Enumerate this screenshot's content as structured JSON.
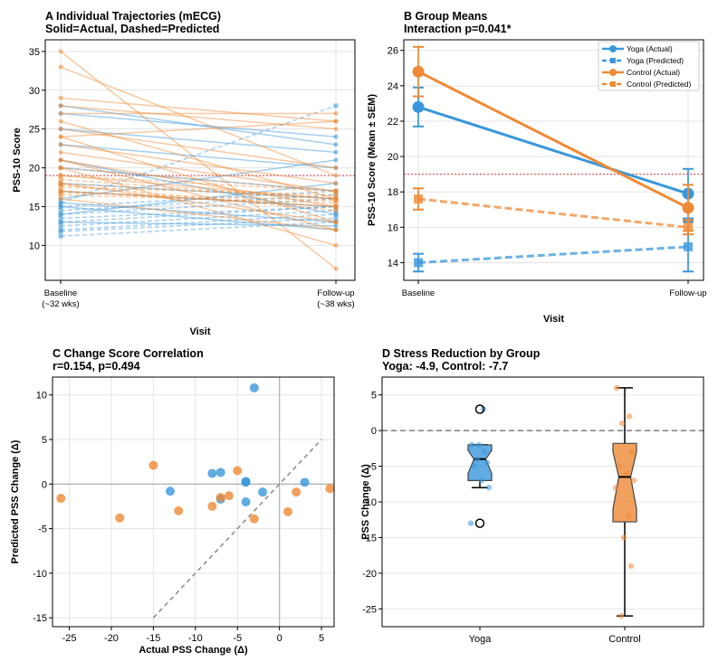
{
  "colors": {
    "yoga": "#3a97db",
    "control": "#ee8a35",
    "threshold": "#e8595a",
    "grid": "#e3e3e3",
    "ref": "#888888"
  },
  "chart_data": [
    {
      "panel": "A",
      "type": "line",
      "title": "A  Individual Trajectories (mECG)",
      "subtitle": "Solid=Actual, Dashed=Predicted",
      "xlabel": "Visit",
      "ylabel": "PSS-10 Score",
      "categories": [
        "Baseline\n(~32 wks)",
        "Follow-up\n(~38 wks)"
      ],
      "ylim": [
        5.5,
        36.5
      ],
      "yticks": [
        10,
        15,
        20,
        25,
        30,
        35
      ],
      "threshold": 19,
      "series": [
        {
          "group": "yoga",
          "kind": "actual",
          "values": [
            28,
            23
          ]
        },
        {
          "group": "yoga",
          "kind": "actual",
          "values": [
            27,
            24
          ]
        },
        {
          "group": "yoga",
          "kind": "actual",
          "values": [
            25,
            22
          ]
        },
        {
          "group": "yoga",
          "kind": "actual",
          "values": [
            23,
            20
          ]
        },
        {
          "group": "yoga",
          "kind": "actual",
          "values": [
            21,
            14
          ]
        },
        {
          "group": "yoga",
          "kind": "actual",
          "values": [
            20,
            17
          ]
        },
        {
          "group": "yoga",
          "kind": "actual",
          "values": [
            18,
            16
          ]
        },
        {
          "group": "yoga",
          "kind": "actual",
          "values": [
            17,
            15
          ]
        },
        {
          "group": "yoga",
          "kind": "actual",
          "values": [
            16,
            21
          ]
        },
        {
          "group": "yoga",
          "kind": "actual",
          "values": [
            15.5,
            13
          ]
        },
        {
          "group": "yoga",
          "kind": "actual",
          "values": [
            15,
            12
          ]
        },
        {
          "group": "yoga",
          "kind": "actual",
          "values": [
            14,
            18
          ]
        },
        {
          "group": "yoga",
          "kind": "actual",
          "values": [
            13,
            12.5
          ]
        },
        {
          "group": "yoga",
          "kind": "predicted",
          "values": [
            15.5,
            28
          ]
        },
        {
          "group": "yoga",
          "kind": "predicted",
          "values": [
            14,
            16
          ]
        },
        {
          "group": "yoga",
          "kind": "predicted",
          "values": [
            13,
            15
          ]
        },
        {
          "group": "yoga",
          "kind": "predicted",
          "values": [
            12.5,
            14.5
          ]
        },
        {
          "group": "yoga",
          "kind": "predicted",
          "values": [
            12,
            14
          ]
        },
        {
          "group": "yoga",
          "kind": "predicted",
          "values": [
            11.8,
            13.5
          ]
        },
        {
          "group": "yoga",
          "kind": "predicted",
          "values": [
            11.2,
            13
          ]
        },
        {
          "group": "yoga",
          "kind": "predicted",
          "values": [
            13.5,
            15
          ]
        },
        {
          "group": "yoga",
          "kind": "predicted",
          "values": [
            14.5,
            16.5
          ]
        },
        {
          "group": "yoga",
          "kind": "predicted",
          "values": [
            15,
            17
          ]
        },
        {
          "group": "control",
          "kind": "actual",
          "values": [
            35,
            7
          ]
        },
        {
          "group": "control",
          "kind": "actual",
          "values": [
            33,
            19
          ]
        },
        {
          "group": "control",
          "kind": "actual",
          "values": [
            29,
            26
          ]
        },
        {
          "group": "control",
          "kind": "actual",
          "values": [
            28,
            25
          ]
        },
        {
          "group": "control",
          "kind": "actual",
          "values": [
            27,
            27
          ]
        },
        {
          "group": "control",
          "kind": "actual",
          "values": [
            26,
            16
          ]
        },
        {
          "group": "control",
          "kind": "actual",
          "values": [
            25,
            20
          ]
        },
        {
          "group": "control",
          "kind": "actual",
          "values": [
            24,
            26
          ]
        },
        {
          "group": "control",
          "kind": "actual",
          "values": [
            23,
            18
          ]
        },
        {
          "group": "control",
          "kind": "actual",
          "values": [
            22,
            17
          ]
        },
        {
          "group": "control",
          "kind": "actual",
          "values": [
            21,
            15
          ]
        },
        {
          "group": "control",
          "kind": "actual",
          "values": [
            20,
            10
          ]
        },
        {
          "group": "control",
          "kind": "actual",
          "values": [
            19,
            16
          ]
        },
        {
          "group": "control",
          "kind": "actual",
          "values": [
            18,
            13
          ]
        },
        {
          "group": "control",
          "kind": "actual",
          "values": [
            17,
            15
          ]
        },
        {
          "group": "control",
          "kind": "actual",
          "values": [
            16,
            12
          ]
        },
        {
          "group": "control",
          "kind": "actual",
          "values": [
            24,
            13
          ]
        },
        {
          "group": "control",
          "kind": "actual",
          "values": [
            21,
            12
          ]
        },
        {
          "group": "control",
          "kind": "predicted",
          "values": [
            18,
            16
          ]
        },
        {
          "group": "control",
          "kind": "predicted",
          "values": [
            17.5,
            16.5
          ]
        },
        {
          "group": "control",
          "kind": "predicted",
          "values": [
            17,
            15
          ]
        },
        {
          "group": "control",
          "kind": "predicted",
          "values": [
            19,
            17
          ]
        },
        {
          "group": "control",
          "kind": "predicted",
          "values": [
            18.5,
            16
          ]
        },
        {
          "group": "control",
          "kind": "predicted",
          "values": [
            16.5,
            15.5
          ]
        },
        {
          "group": "control",
          "kind": "predicted",
          "values": [
            20,
            17
          ]
        },
        {
          "group": "control",
          "kind": "predicted",
          "values": [
            17.8,
            14.5
          ]
        },
        {
          "group": "control",
          "kind": "predicted",
          "values": [
            16.8,
            15.8
          ]
        }
      ]
    },
    {
      "panel": "B",
      "type": "line",
      "title": "B  Group Means",
      "subtitle": "Interaction p=0.041*",
      "xlabel": "Visit",
      "ylabel": "PSS-10 Score (Mean ± SEM)",
      "categories": [
        "Baseline",
        "Follow-up"
      ],
      "ylim": [
        13,
        26.6
      ],
      "yticks": [
        14,
        16,
        18,
        20,
        22,
        24,
        26
      ],
      "threshold": 19,
      "series": [
        {
          "name": "Yoga (Actual)",
          "group": "yoga",
          "kind": "actual",
          "values": [
            22.8,
            17.9
          ],
          "sem": [
            1.1,
            1.4
          ]
        },
        {
          "name": "Yoga (Predicted)",
          "group": "yoga",
          "kind": "predicted",
          "values": [
            14.0,
            14.9
          ],
          "sem": [
            0.5,
            1.4
          ]
        },
        {
          "name": "Control (Actual)",
          "group": "control",
          "kind": "actual",
          "values": [
            24.8,
            17.1
          ],
          "sem": [
            1.4,
            1.3
          ]
        },
        {
          "name": "Control (Predicted)",
          "group": "control",
          "kind": "predicted",
          "values": [
            17.6,
            16.0
          ],
          "sem": [
            0.6,
            0.4
          ]
        }
      ]
    },
    {
      "panel": "C",
      "type": "scatter",
      "title": "C  Change Score Correlation",
      "subtitle": "r=0.154, p=0.494",
      "xlabel": "Actual PSS Change (Δ)",
      "ylabel": "Predicted PSS Change (Δ)",
      "xlim": [
        -27,
        6.5
      ],
      "ylim": [
        -16,
        12
      ],
      "xticks": [
        -25,
        -20,
        -15,
        -10,
        -5,
        0,
        5
      ],
      "yticks": [
        -15,
        -10,
        -5,
        0,
        5,
        10
      ],
      "identity_line": [
        -15,
        5
      ],
      "points": [
        {
          "group": "yoga",
          "x": -3,
          "y": 10.8
        },
        {
          "group": "yoga",
          "x": -8,
          "y": 1.2
        },
        {
          "group": "yoga",
          "x": -7,
          "y": 1.3
        },
        {
          "group": "yoga",
          "x": -13,
          "y": -0.8
        },
        {
          "group": "yoga",
          "x": -7,
          "y": -1.7
        },
        {
          "group": "yoga",
          "x": -4,
          "y": 0.3
        },
        {
          "group": "yoga",
          "x": -4,
          "y": 0.2
        },
        {
          "group": "yoga",
          "x": -4,
          "y": -2
        },
        {
          "group": "yoga",
          "x": -2,
          "y": -0.9
        },
        {
          "group": "yoga",
          "x": 3,
          "y": 0.2
        },
        {
          "group": "control",
          "x": -26,
          "y": -1.6
        },
        {
          "group": "control",
          "x": -19,
          "y": -3.8
        },
        {
          "group": "control",
          "x": -15,
          "y": 2.1
        },
        {
          "group": "control",
          "x": -12,
          "y": -3
        },
        {
          "group": "control",
          "x": -8,
          "y": -2.5
        },
        {
          "group": "control",
          "x": -7,
          "y": -1.5
        },
        {
          "group": "control",
          "x": -6,
          "y": -1.3
        },
        {
          "group": "control",
          "x": -5,
          "y": 1.5
        },
        {
          "group": "control",
          "x": -3,
          "y": -3.9
        },
        {
          "group": "control",
          "x": 1,
          "y": -3.1
        },
        {
          "group": "control",
          "x": 2,
          "y": -0.9
        },
        {
          "group": "control",
          "x": 6,
          "y": -0.5
        }
      ]
    },
    {
      "panel": "D",
      "type": "box",
      "title": "D  Stress Reduction by Group",
      "subtitle": "Yoga: -4.9, Control: -7.7",
      "xlabel": "",
      "ylabel": "PSS Change (Δ)",
      "categories": [
        "Yoga",
        "Control"
      ],
      "ylim": [
        -27.5,
        7.5
      ],
      "yticks": [
        -25,
        -20,
        -15,
        -10,
        -5,
        0,
        5
      ],
      "reference": 0,
      "boxes": [
        {
          "name": "Yoga",
          "group": "yoga",
          "whisker_low": -8,
          "q1": -7,
          "median": -4,
          "q3": -2,
          "whisker_high": -2,
          "notch_low": -6,
          "notch_high": -2.8,
          "fliers": [
            3,
            -13
          ],
          "points": [
            -2,
            -3,
            -4,
            -4.5,
            -5,
            -7,
            -8,
            -13,
            3,
            -2
          ]
        },
        {
          "name": "Control",
          "group": "control",
          "whisker_low": -26,
          "q1": -12.8,
          "median": -6.5,
          "q3": -1.8,
          "whisker_high": 6,
          "notch_low": -11,
          "notch_high": -3,
          "fliers": [],
          "points": [
            6,
            2,
            1,
            -3,
            -5,
            -6,
            -7,
            -8,
            -12,
            -15,
            -19,
            -26
          ]
        }
      ]
    }
  ]
}
